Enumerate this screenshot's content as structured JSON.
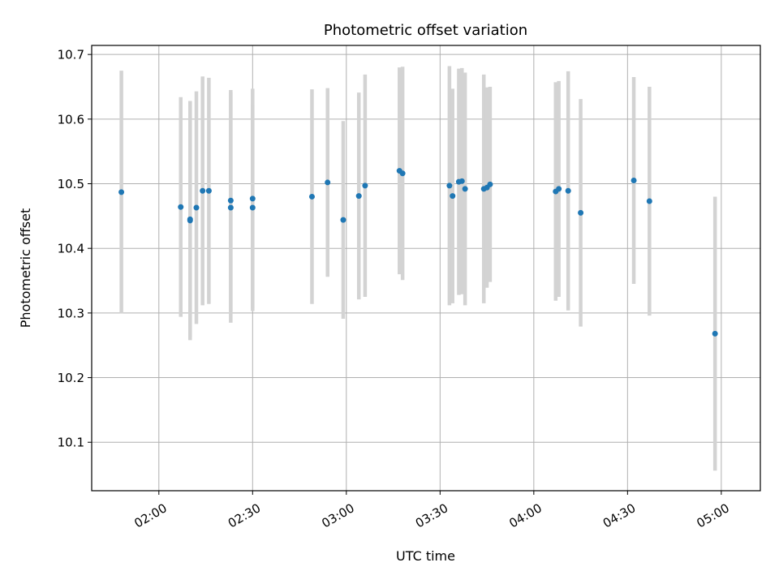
{
  "chart_data": {
    "type": "scatter",
    "title": "Photometric offset variation",
    "xlabel": "UTC time",
    "ylabel": "Photometric offset",
    "x_tick_labels": [
      "02:00",
      "02:30",
      "03:00",
      "03:30",
      "04:00",
      "04:30",
      "05:00"
    ],
    "x_tick_minutes": [
      120,
      150,
      180,
      210,
      240,
      270,
      300
    ],
    "y_tick_labels": [
      "10.1",
      "10.2",
      "10.3",
      "10.4",
      "10.5",
      "10.6",
      "10.7"
    ],
    "y_ticks": [
      10.1,
      10.2,
      10.3,
      10.4,
      10.5,
      10.6,
      10.7
    ],
    "xlim_minutes": [
      98.5,
      312.5
    ],
    "ylim": [
      10.025,
      10.714
    ],
    "grid": true,
    "point_color": "#1f77b4",
    "errorbar_color": "#d3d3d3",
    "points": [
      {
        "t": "01:48",
        "y": 10.487,
        "err": 0.188
      },
      {
        "t": "02:07",
        "y": 10.464,
        "err": 0.17
      },
      {
        "t": "02:10",
        "y": 10.443,
        "err": 0.185
      },
      {
        "t": "02:10",
        "y": 10.445,
        "err": 0.183
      },
      {
        "t": "02:12",
        "y": 10.463,
        "err": 0.18
      },
      {
        "t": "02:14",
        "y": 10.489,
        "err": 0.177
      },
      {
        "t": "02:16",
        "y": 10.489,
        "err": 0.175
      },
      {
        "t": "02:23",
        "y": 10.474,
        "err": 0.171
      },
      {
        "t": "02:23",
        "y": 10.463,
        "err": 0.178
      },
      {
        "t": "02:30",
        "y": 10.463,
        "err": 0.16
      },
      {
        "t": "02:30",
        "y": 10.477,
        "err": 0.17
      },
      {
        "t": "02:49",
        "y": 10.48,
        "err": 0.166
      },
      {
        "t": "02:54",
        "y": 10.502,
        "err": 0.146
      },
      {
        "t": "02:59",
        "y": 10.444,
        "err": 0.153
      },
      {
        "t": "03:04",
        "y": 10.481,
        "err": 0.16
      },
      {
        "t": "03:06",
        "y": 10.497,
        "err": 0.172
      },
      {
        "t": "03:17",
        "y": 10.52,
        "err": 0.16
      },
      {
        "t": "03:18",
        "y": 10.516,
        "err": 0.165
      },
      {
        "t": "03:33",
        "y": 10.497,
        "err": 0.185
      },
      {
        "t": "03:34",
        "y": 10.481,
        "err": 0.166
      },
      {
        "t": "03:36",
        "y": 10.503,
        "err": 0.175
      },
      {
        "t": "03:37",
        "y": 10.504,
        "err": 0.175
      },
      {
        "t": "03:38",
        "y": 10.492,
        "err": 0.18
      },
      {
        "t": "03:44",
        "y": 10.492,
        "err": 0.177
      },
      {
        "t": "03:45",
        "y": 10.494,
        "err": 0.155
      },
      {
        "t": "03:46",
        "y": 10.499,
        "err": 0.151
      },
      {
        "t": "04:07",
        "y": 10.488,
        "err": 0.169
      },
      {
        "t": "04:08",
        "y": 10.492,
        "err": 0.167
      },
      {
        "t": "04:11",
        "y": 10.489,
        "err": 0.185
      },
      {
        "t": "04:15",
        "y": 10.455,
        "err": 0.176
      },
      {
        "t": "04:32",
        "y": 10.505,
        "err": 0.16
      },
      {
        "t": "04:37",
        "y": 10.473,
        "err": 0.177
      },
      {
        "t": "04:58",
        "y": 10.268,
        "err": 0.212
      }
    ]
  }
}
